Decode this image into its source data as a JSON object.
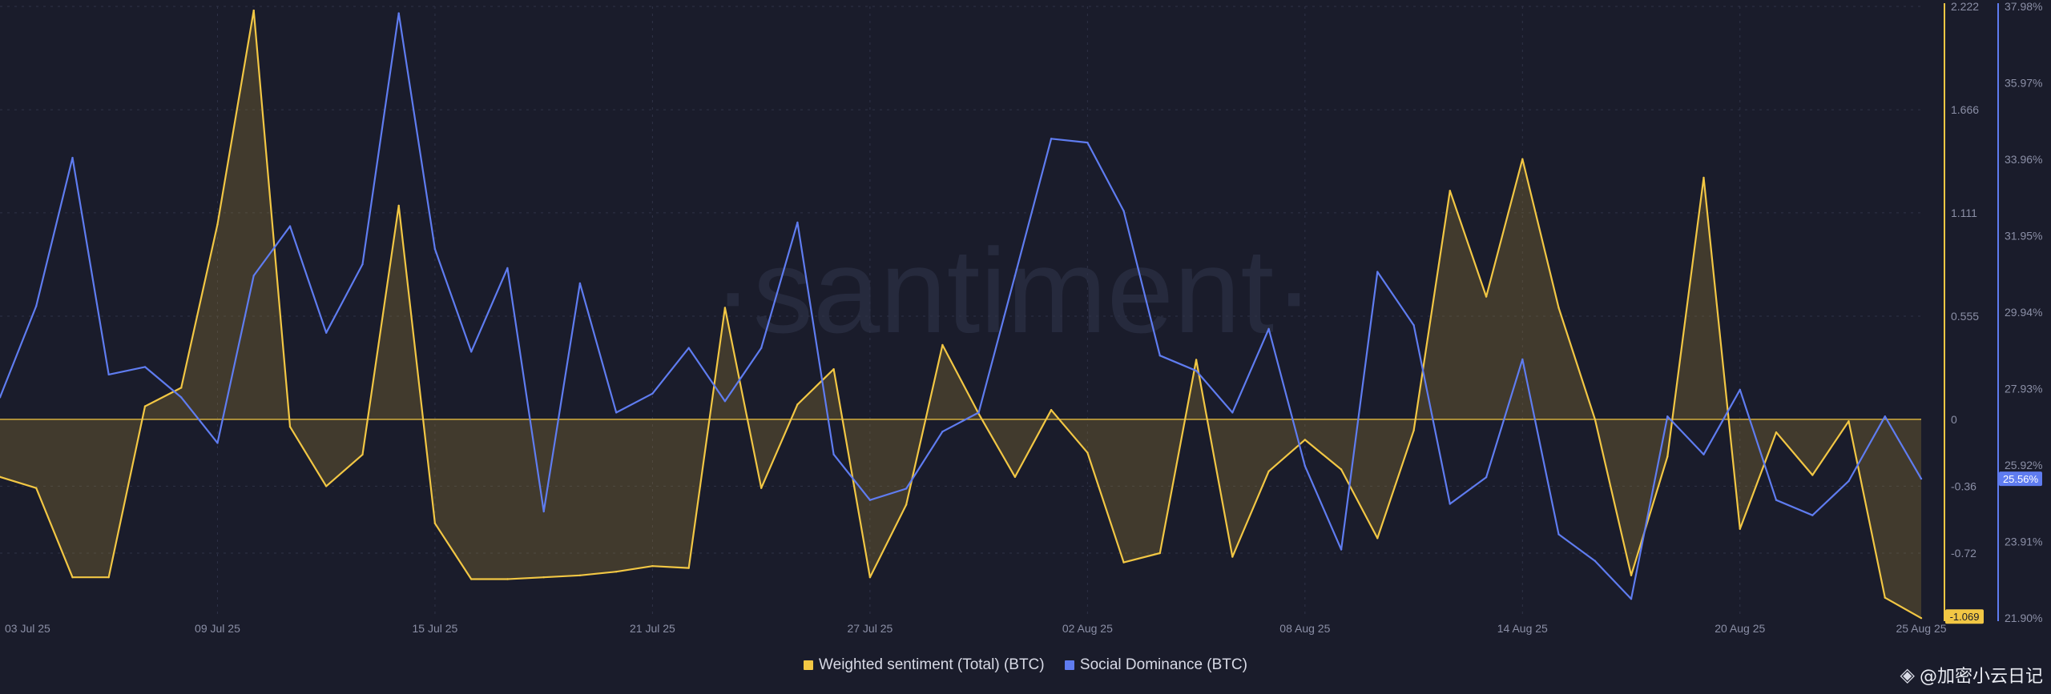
{
  "chart_data": {
    "type": "line",
    "title": "",
    "watermark": "·santiment·",
    "x": [
      "03 Jul 25",
      "04 Jul 25",
      "05 Jul 25",
      "06 Jul 25",
      "07 Jul 25",
      "08 Jul 25",
      "09 Jul 25",
      "10 Jul 25",
      "11 Jul 25",
      "12 Jul 25",
      "13 Jul 25",
      "14 Jul 25",
      "15 Jul 25",
      "16 Jul 25",
      "17 Jul 25",
      "18 Jul 25",
      "19 Jul 25",
      "20 Jul 25",
      "21 Jul 25",
      "22 Jul 25",
      "23 Jul 25",
      "24 Jul 25",
      "25 Jul 25",
      "26 Jul 25",
      "27 Jul 25",
      "28 Jul 25",
      "29 Jul 25",
      "30 Jul 25",
      "31 Jul 25",
      "01 Aug 25",
      "02 Aug 25",
      "03 Aug 25",
      "04 Aug 25",
      "05 Aug 25",
      "06 Aug 25",
      "07 Aug 25",
      "08 Aug 25",
      "09 Aug 25",
      "10 Aug 25",
      "11 Aug 25",
      "12 Aug 25",
      "13 Aug 25",
      "14 Aug 25",
      "15 Aug 25",
      "16 Aug 25",
      "17 Aug 25",
      "18 Aug 25",
      "19 Aug 25",
      "20 Aug 25",
      "21 Aug 25",
      "22 Aug 25",
      "23 Aug 25",
      "24 Aug 25",
      "25 Aug 25"
    ],
    "x_ticks": [
      "03 Jul 25",
      "09 Jul 25",
      "15 Jul 25",
      "21 Jul 25",
      "27 Jul 25",
      "02 Aug 25",
      "08 Aug 25",
      "14 Aug 25",
      "20 Aug 25",
      "25 Aug 25"
    ],
    "series": [
      {
        "name": "Weighted sentiment (Total) (BTC)",
        "color": "#f2c744",
        "axis": "left",
        "fill_to_zero": true,
        "values": [
          -0.31,
          -0.37,
          -0.85,
          -0.85,
          0.07,
          0.17,
          1.05,
          2.2,
          -0.04,
          -0.36,
          -0.19,
          1.15,
          -0.56,
          -0.86,
          -0.86,
          -0.85,
          -0.84,
          -0.82,
          -0.79,
          -0.8,
          0.6,
          -0.37,
          0.08,
          0.27,
          -0.85,
          -0.46,
          0.4,
          0.03,
          -0.31,
          0.05,
          -0.18,
          -0.77,
          -0.72,
          0.32,
          -0.74,
          -0.28,
          -0.11,
          -0.27,
          -0.64,
          -0.06,
          1.23,
          0.66,
          1.4,
          0.6,
          0.0,
          -0.84,
          -0.2,
          1.3,
          -0.59,
          -0.07,
          -0.3,
          -0.01,
          -0.96,
          -1.07
        ]
      },
      {
        "name": "Social Dominance (BTC)",
        "color": "#5f7cf0",
        "axis": "right",
        "values": [
          27.7,
          30.1,
          34.0,
          28.3,
          28.5,
          27.7,
          26.5,
          30.9,
          32.2,
          29.4,
          31.2,
          37.8,
          31.6,
          28.9,
          31.1,
          24.7,
          30.7,
          27.3,
          27.8,
          29.0,
          27.6,
          29.0,
          32.3,
          26.2,
          25.0,
          25.3,
          26.8,
          27.3,
          30.9,
          34.5,
          34.4,
          32.6,
          28.8,
          28.4,
          27.3,
          29.5,
          25.9,
          23.7,
          31.0,
          29.6,
          24.9,
          25.6,
          28.7,
          24.1,
          23.4,
          22.4,
          27.2,
          26.2,
          27.9,
          25.0,
          24.6,
          25.5,
          27.2,
          25.56
        ]
      }
    ],
    "y_left": {
      "ticks": [
        "2.222",
        "1.666",
        "1.111",
        "0.555",
        "0",
        "-0.36",
        "-0.72"
      ],
      "ylim": [
        -1.069,
        2.222
      ],
      "current_value": "-1.069"
    },
    "y_right": {
      "ticks": [
        "37.98%",
        "35.97%",
        "33.96%",
        "31.95%",
        "29.94%",
        "27.93%",
        "25.92%",
        "23.91%",
        "21.90%"
      ],
      "ylim": [
        21.9,
        37.98
      ],
      "current_value": "25.56%"
    },
    "legend": [
      {
        "label": "Weighted sentiment (Total) (BTC)",
        "color": "#f2c744"
      },
      {
        "label": "Social Dominance (BTC)",
        "color": "#5f7cf0"
      }
    ],
    "legend_position": "bottom-center",
    "grid": true
  },
  "credit": {
    "handle": "@加密小云日记"
  }
}
